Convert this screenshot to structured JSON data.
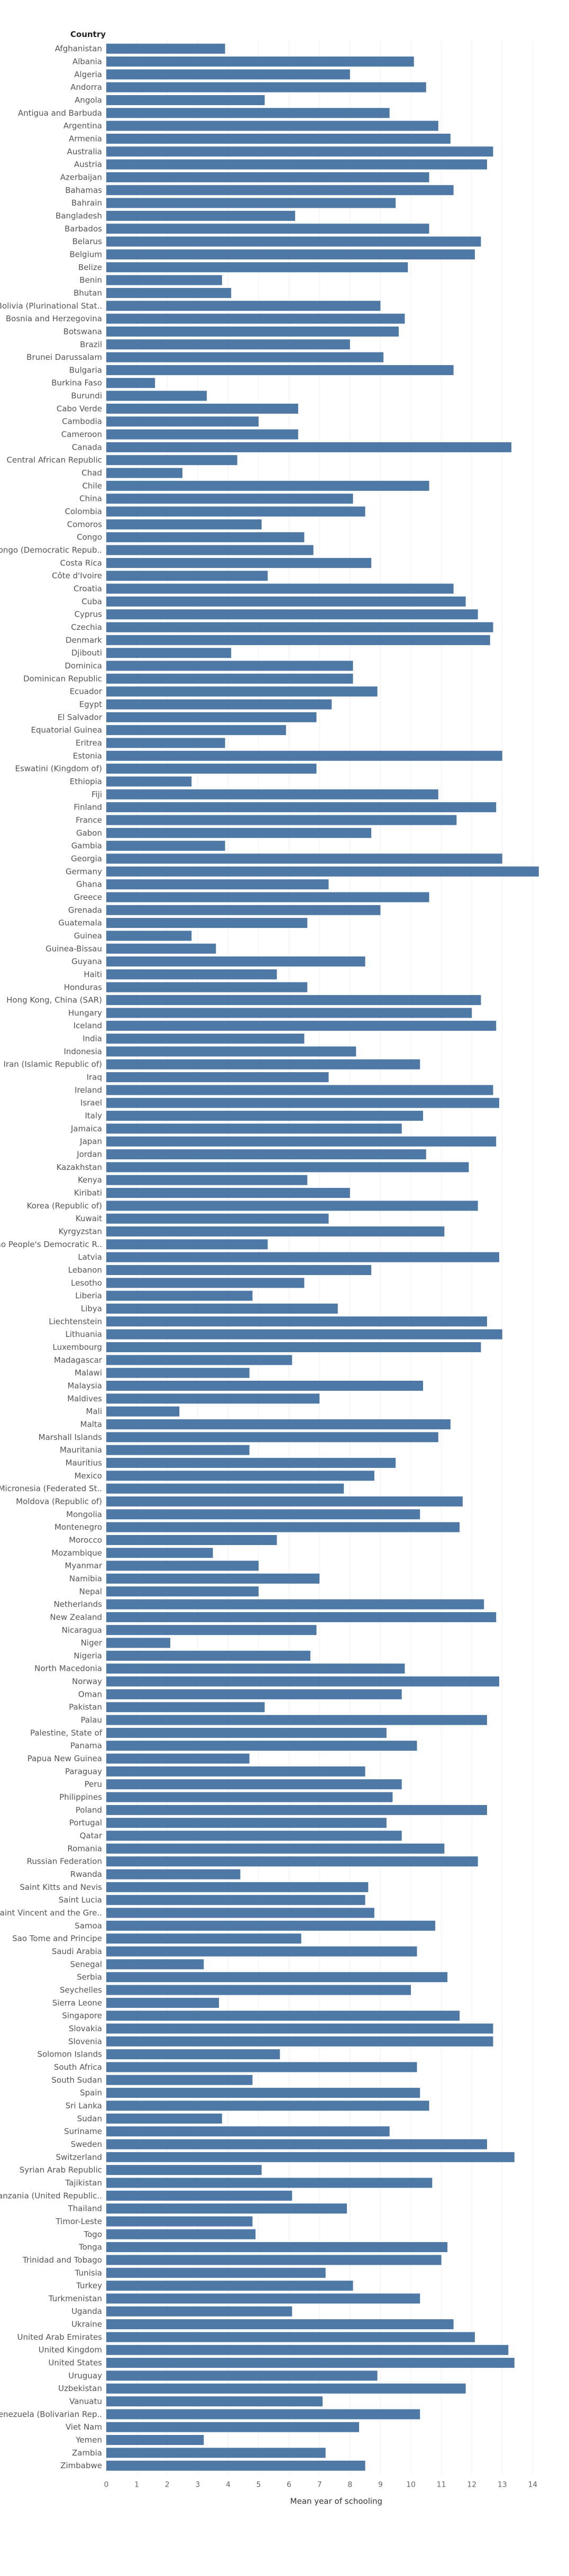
{
  "chart_data": {
    "type": "bar",
    "orientation": "horizontal",
    "category_header": "Country",
    "xlabel": "Mean year of schooling",
    "ylabel": "",
    "xlim": [
      0,
      14.5
    ],
    "xticks": [
      0,
      1,
      2,
      3,
      4,
      5,
      6,
      7,
      8,
      9,
      10,
      11,
      12,
      13,
      14
    ],
    "grid": true,
    "bar_color": "#4e79a7",
    "categories": [
      "Afghanistan",
      "Albania",
      "Algeria",
      "Andorra",
      "Angola",
      "Antigua and Barbuda",
      "Argentina",
      "Armenia",
      "Australia",
      "Austria",
      "Azerbaijan",
      "Bahamas",
      "Bahrain",
      "Bangladesh",
      "Barbados",
      "Belarus",
      "Belgium",
      "Belize",
      "Benin",
      "Bhutan",
      "Bolivia (Plurinational Stat..",
      "Bosnia and Herzegovina",
      "Botswana",
      "Brazil",
      "Brunei Darussalam",
      "Bulgaria",
      "Burkina Faso",
      "Burundi",
      "Cabo Verde",
      "Cambodia",
      "Cameroon",
      "Canada",
      "Central African Republic",
      "Chad",
      "Chile",
      "China",
      "Colombia",
      "Comoros",
      "Congo",
      "Congo (Democratic Repub..",
      "Costa Rica",
      "Côte d'Ivoire",
      "Croatia",
      "Cuba",
      "Cyprus",
      "Czechia",
      "Denmark",
      "Djibouti",
      "Dominica",
      "Dominican Republic",
      "Ecuador",
      "Egypt",
      "El Salvador",
      "Equatorial Guinea",
      "Eritrea",
      "Estonia",
      "Eswatini (Kingdom of)",
      "Ethiopia",
      "Fiji",
      "Finland",
      "France",
      "Gabon",
      "Gambia",
      "Georgia",
      "Germany",
      "Ghana",
      "Greece",
      "Grenada",
      "Guatemala",
      "Guinea",
      "Guinea-Bissau",
      "Guyana",
      "Haiti",
      "Honduras",
      "Hong Kong, China (SAR)",
      "Hungary",
      "Iceland",
      "India",
      "Indonesia",
      "Iran (Islamic Republic of)",
      "Iraq",
      "Ireland",
      "Israel",
      "Italy",
      "Jamaica",
      "Japan",
      "Jordan",
      "Kazakhstan",
      "Kenya",
      "Kiribati",
      "Korea (Republic of)",
      "Kuwait",
      "Kyrgyzstan",
      "Lao People's Democratic R..",
      "Latvia",
      "Lebanon",
      "Lesotho",
      "Liberia",
      "Libya",
      "Liechtenstein",
      "Lithuania",
      "Luxembourg",
      "Madagascar",
      "Malawi",
      "Malaysia",
      "Maldives",
      "Mali",
      "Malta",
      "Marshall Islands",
      "Mauritania",
      "Mauritius",
      "Mexico",
      "Micronesia (Federated St..",
      "Moldova (Republic of)",
      "Mongolia",
      "Montenegro",
      "Morocco",
      "Mozambique",
      "Myanmar",
      "Namibia",
      "Nepal",
      "Netherlands",
      "New Zealand",
      "Nicaragua",
      "Niger",
      "Nigeria",
      "North Macedonia",
      "Norway",
      "Oman",
      "Pakistan",
      "Palau",
      "Palestine, State of",
      "Panama",
      "Papua New Guinea",
      "Paraguay",
      "Peru",
      "Philippines",
      "Poland",
      "Portugal",
      "Qatar",
      "Romania",
      "Russian Federation",
      "Rwanda",
      "Saint Kitts and Nevis",
      "Saint Lucia",
      "Saint Vincent and the Gre..",
      "Samoa",
      "Sao Tome and Principe",
      "Saudi Arabia",
      "Senegal",
      "Serbia",
      "Seychelles",
      "Sierra Leone",
      "Singapore",
      "Slovakia",
      "Slovenia",
      "Solomon Islands",
      "South Africa",
      "South Sudan",
      "Spain",
      "Sri Lanka",
      "Sudan",
      "Suriname",
      "Sweden",
      "Switzerland",
      "Syrian Arab Republic",
      "Tajikistan",
      "Tanzania (United Republic..",
      "Thailand",
      "Timor-Leste",
      "Togo",
      "Tonga",
      "Trinidad and Tobago",
      "Tunisia",
      "Turkey",
      "Turkmenistan",
      "Uganda",
      "Ukraine",
      "United Arab Emirates",
      "United Kingdom",
      "United States",
      "Uruguay",
      "Uzbekistan",
      "Vanuatu",
      "Venezuela (Bolivarian Rep..",
      "Viet Nam",
      "Yemen",
      "Zambia",
      "Zimbabwe"
    ],
    "values": [
      3.9,
      10.1,
      8.0,
      10.5,
      5.2,
      9.3,
      10.9,
      11.3,
      12.7,
      12.5,
      10.6,
      11.4,
      9.5,
      6.2,
      10.6,
      12.3,
      12.1,
      9.9,
      3.8,
      4.1,
      9.0,
      9.8,
      9.6,
      8.0,
      9.1,
      11.4,
      1.6,
      3.3,
      6.3,
      5.0,
      6.3,
      13.3,
      4.3,
      2.5,
      10.6,
      8.1,
      8.5,
      5.1,
      6.5,
      6.8,
      8.7,
      5.3,
      11.4,
      11.8,
      12.2,
      12.7,
      12.6,
      4.1,
      8.1,
      8.1,
      8.9,
      7.4,
      6.9,
      5.9,
      3.9,
      13.0,
      6.9,
      2.8,
      10.9,
      12.8,
      11.5,
      8.7,
      3.9,
      13.0,
      14.2,
      7.3,
      10.6,
      9.0,
      6.6,
      2.8,
      3.6,
      8.5,
      5.6,
      6.6,
      12.3,
      12.0,
      12.8,
      6.5,
      8.2,
      10.3,
      7.3,
      12.7,
      12.9,
      10.4,
      9.7,
      12.8,
      10.5,
      11.9,
      6.6,
      8.0,
      12.2,
      7.3,
      11.1,
      5.3,
      12.9,
      8.7,
      6.5,
      4.8,
      7.6,
      12.5,
      13.0,
      12.3,
      6.1,
      4.7,
      10.4,
      7.0,
      2.4,
      11.3,
      10.9,
      4.7,
      9.5,
      8.8,
      7.8,
      11.7,
      10.3,
      11.6,
      5.6,
      3.5,
      5.0,
      7.0,
      5.0,
      12.4,
      12.8,
      6.9,
      2.1,
      6.7,
      9.8,
      12.9,
      9.7,
      5.2,
      12.5,
      9.2,
      10.2,
      4.7,
      8.5,
      9.7,
      9.4,
      12.5,
      9.2,
      9.7,
      11.1,
      12.2,
      4.4,
      8.6,
      8.5,
      8.8,
      10.8,
      6.4,
      10.2,
      3.2,
      11.2,
      10.0,
      3.7,
      11.6,
      12.7,
      12.7,
      5.7,
      10.2,
      4.8,
      10.3,
      10.6,
      3.8,
      9.3,
      12.5,
      13.4,
      5.1,
      10.7,
      6.1,
      7.9,
      4.8,
      4.9,
      11.2,
      11.0,
      7.2,
      8.1,
      10.3,
      6.1,
      11.4,
      12.1,
      13.2,
      13.4,
      8.9,
      11.8,
      7.1,
      10.3,
      8.3,
      3.2,
      7.2,
      8.5
    ]
  }
}
